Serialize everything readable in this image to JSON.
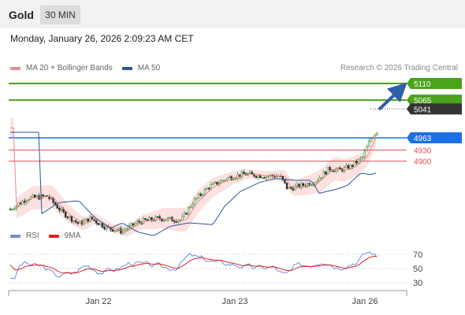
{
  "header": {
    "title": "Gold",
    "timeframe": "30 MIN"
  },
  "datetime": "Monday, January 26, 2026 2:09:23 AM CET",
  "legend": {
    "items": [
      {
        "label": "MA 20 + Bollinger Bands",
        "color": "#f08a8a"
      },
      {
        "label": "MA 50",
        "color": "#2e5596"
      }
    ],
    "credit": "Research © 2026 Trading Central"
  },
  "rsi_legend": {
    "items": [
      {
        "label": "RSI",
        "color": "#6f8ee0"
      },
      {
        "label": "9MA",
        "color": "#e02020"
      }
    ]
  },
  "levels": [
    {
      "label": "5110",
      "value": 5110,
      "kind": "resistance",
      "color": "#4aa31a"
    },
    {
      "label": "5065",
      "value": 5065,
      "kind": "resistance",
      "color": "#4aa31a"
    },
    {
      "label": "5041",
      "value": 5041,
      "kind": "last-price",
      "color": "#333333"
    },
    {
      "label": "4963",
      "value": 4963,
      "kind": "pivot",
      "color": "#1d6fe8"
    },
    {
      "label": "4930",
      "value": 4930,
      "kind": "support",
      "color": "#e05050"
    },
    {
      "label": "4900",
      "value": 4900,
      "kind": "support",
      "color": "#e05050"
    }
  ],
  "rsi_ticks": [
    "70",
    "50",
    "30"
  ],
  "x_ticks": [
    "Jan 22",
    "Jan 23",
    "Jan 26"
  ],
  "chart_data": {
    "type": "candlestick",
    "series": [
      {
        "name": "MA 20 + Bollinger Bands"
      },
      {
        "name": "MA 50"
      }
    ],
    "last_price": 5041,
    "rsi": {
      "ticks": [
        70,
        50,
        30
      ]
    }
  }
}
